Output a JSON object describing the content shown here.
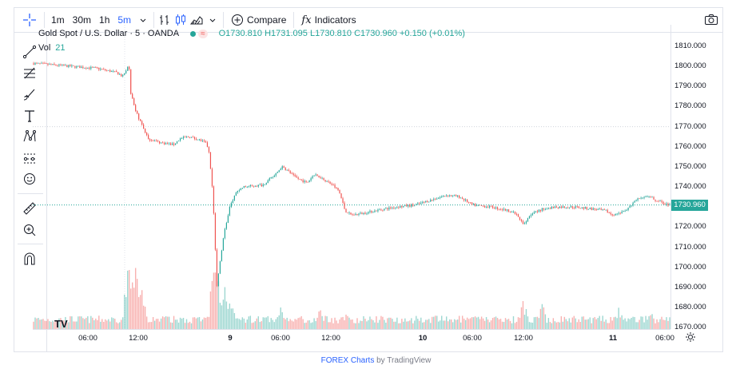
{
  "toolbar": {
    "timeframes": [
      {
        "label": "1m",
        "active": false
      },
      {
        "label": "30m",
        "active": false
      },
      {
        "label": "1h",
        "active": false
      },
      {
        "label": "5m",
        "active": true
      }
    ],
    "compare_label": "Compare",
    "indicators_label": "Indicators",
    "fx_glyph": "fx"
  },
  "legend": {
    "symbol": "Gold Spot / U.S. Dollar · 5 · OANDA",
    "open_key": "O",
    "open": "1730.810",
    "high_key": "H",
    "high": "1731.095",
    "low_key": "L",
    "low": "1730.810",
    "close_key": "C",
    "close": "1730.960",
    "change": "+0.150 (+0.01%)",
    "vol_label": "Vol",
    "vol_value": "21"
  },
  "price_axis": [
    "1810.000",
    "1800.000",
    "1790.000",
    "1780.000",
    "1770.000",
    "1760.000",
    "1750.000",
    "1740.000",
    "1730.000",
    "1720.000",
    "1710.000",
    "1700.000",
    "1690.000",
    "1680.000",
    "1670.000"
  ],
  "last_price": "1730.960",
  "time_axis": [
    "06:00",
    "12:00",
    "9",
    "06:00",
    "12:00",
    "10",
    "06:00",
    "12:00",
    "11",
    "06:00"
  ],
  "logo_text": "TV",
  "footer": {
    "link": "FOREX Charts",
    "by": "by TradingView"
  },
  "colors": {
    "up": "#26a69a",
    "down": "#ef5350",
    "accent": "#2962ff"
  },
  "chart_data": {
    "type": "candlestick",
    "title": "Gold Spot / U.S. Dollar · 5 · OANDA",
    "ylim": [
      1665,
      1815
    ],
    "x_labels": [
      "06:00",
      "12:00",
      "9",
      "06:00",
      "12:00",
      "10",
      "06:00",
      "12:00",
      "11",
      "06:00"
    ],
    "path_points": [
      [
        0,
        1801.5
      ],
      [
        0.04,
        1800.5
      ],
      [
        0.08,
        1799.5
      ],
      [
        0.1,
        1799
      ],
      [
        0.13,
        1797
      ],
      [
        0.14,
        1795
      ],
      [
        0.15,
        1801
      ],
      [
        0.152,
        1788
      ],
      [
        0.16,
        1778
      ],
      [
        0.17,
        1771
      ],
      [
        0.18,
        1764
      ],
      [
        0.2,
        1762
      ],
      [
        0.22,
        1761
      ],
      [
        0.23,
        1764
      ],
      [
        0.245,
        1765
      ],
      [
        0.26,
        1763.5
      ],
      [
        0.27,
        1762
      ],
      [
        0.275,
        1759
      ],
      [
        0.278,
        1750
      ],
      [
        0.282,
        1735
      ],
      [
        0.285,
        1715
      ],
      [
        0.288,
        1690
      ],
      [
        0.292,
        1700
      ],
      [
        0.3,
        1718
      ],
      [
        0.31,
        1732
      ],
      [
        0.32,
        1738
      ],
      [
        0.33,
        1740
      ],
      [
        0.36,
        1741
      ],
      [
        0.38,
        1746
      ],
      [
        0.39,
        1750
      ],
      [
        0.4,
        1748
      ],
      [
        0.41,
        1745
      ],
      [
        0.43,
        1742
      ],
      [
        0.44,
        1746
      ],
      [
        0.45,
        1745
      ],
      [
        0.47,
        1741
      ],
      [
        0.48,
        1738
      ],
      [
        0.49,
        1728
      ],
      [
        0.5,
        1726
      ],
      [
        0.52,
        1727
      ],
      [
        0.55,
        1729
      ],
      [
        0.57,
        1730
      ],
      [
        0.6,
        1731
      ],
      [
        0.63,
        1734
      ],
      [
        0.65,
        1736
      ],
      [
        0.67,
        1735
      ],
      [
        0.69,
        1731
      ],
      [
        0.72,
        1730
      ],
      [
        0.75,
        1728
      ],
      [
        0.76,
        1726
      ],
      [
        0.77,
        1721
      ],
      [
        0.78,
        1726
      ],
      [
        0.8,
        1729
      ],
      [
        0.82,
        1730
      ],
      [
        0.85,
        1730
      ],
      [
        0.88,
        1729
      ],
      [
        0.9,
        1728
      ],
      [
        0.91,
        1726
      ],
      [
        0.93,
        1728
      ],
      [
        0.95,
        1734
      ],
      [
        0.97,
        1735
      ],
      [
        0.98,
        1733
      ],
      [
        1.0,
        1731
      ]
    ],
    "volume_peaks": [
      [
        0.15,
        0.9
      ],
      [
        0.16,
        0.7
      ],
      [
        0.17,
        0.45
      ],
      [
        0.285,
        1.0
      ],
      [
        0.29,
        0.65
      ],
      [
        0.3,
        0.5
      ],
      [
        0.31,
        0.35
      ],
      [
        0.39,
        0.3
      ],
      [
        0.45,
        0.25
      ],
      [
        0.49,
        0.2
      ],
      [
        0.77,
        0.35
      ],
      [
        0.8,
        0.3
      ],
      [
        0.92,
        0.25
      ],
      [
        0.97,
        0.2
      ]
    ]
  }
}
